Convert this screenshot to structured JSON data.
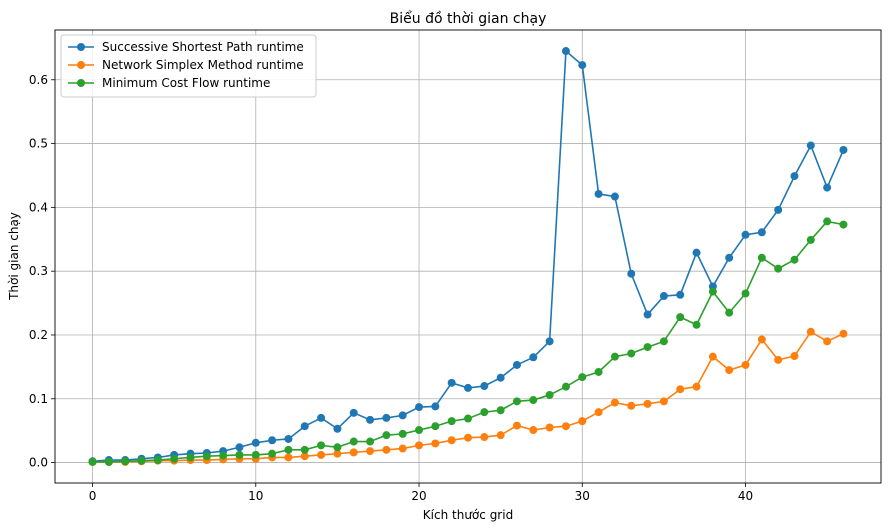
{
  "chart_data": {
    "type": "line",
    "title": "Biểu đồ thời gian chạy",
    "xlabel": "Kích thước grid",
    "ylabel": "Thời gian chạy",
    "xlim": [
      -2.3,
      48.3
    ],
    "ylim": [
      -0.032,
      0.678
    ],
    "xticks": [
      0,
      10,
      20,
      30,
      40
    ],
    "yticks": [
      0.0,
      0.1,
      0.2,
      0.3,
      0.4,
      0.5,
      0.6
    ],
    "ytick_labels": [
      "0.0",
      "0.1",
      "0.2",
      "0.3",
      "0.4",
      "0.5",
      "0.6"
    ],
    "grid": true,
    "legend_position": "top-left",
    "x": [
      0,
      1,
      2,
      3,
      4,
      5,
      6,
      7,
      8,
      9,
      10,
      11,
      12,
      13,
      14,
      15,
      16,
      17,
      18,
      19,
      20,
      21,
      22,
      23,
      24,
      25,
      26,
      27,
      28,
      29,
      30,
      31,
      32,
      33,
      34,
      35,
      36,
      37,
      38,
      39,
      40,
      41,
      42,
      43,
      44,
      45,
      46
    ],
    "series": [
      {
        "name": "Successive Shortest Path runtime",
        "color": "#1f77b4",
        "values": [
          0.002,
          0.004,
          0.004,
          0.006,
          0.008,
          0.012,
          0.014,
          0.015,
          0.018,
          0.024,
          0.031,
          0.035,
          0.037,
          0.057,
          0.07,
          0.053,
          0.078,
          0.067,
          0.07,
          0.074,
          0.087,
          0.088,
          0.125,
          0.117,
          0.12,
          0.133,
          0.153,
          0.165,
          0.19,
          0.645,
          0.623,
          0.421,
          0.417,
          0.296,
          0.232,
          0.261,
          0.263,
          0.329,
          0.276,
          0.321,
          0.357,
          0.361,
          0.396,
          0.449,
          0.497,
          0.431,
          0.49
        ]
      },
      {
        "name": "Network Simplex Method runtime",
        "color": "#ff7f0e",
        "values": [
          0.001,
          0.001,
          0.001,
          0.002,
          0.003,
          0.003,
          0.004,
          0.004,
          0.005,
          0.006,
          0.006,
          0.008,
          0.008,
          0.01,
          0.012,
          0.014,
          0.016,
          0.018,
          0.02,
          0.022,
          0.027,
          0.03,
          0.035,
          0.039,
          0.04,
          0.043,
          0.058,
          0.051,
          0.055,
          0.057,
          0.065,
          0.079,
          0.094,
          0.089,
          0.092,
          0.096,
          0.115,
          0.119,
          0.166,
          0.145,
          0.153,
          0.193,
          0.161,
          0.167,
          0.205,
          0.19,
          0.202
        ]
      },
      {
        "name": "Minimum Cost Flow runtime",
        "color": "#2ca02c",
        "values": [
          0.001,
          0.001,
          0.002,
          0.003,
          0.004,
          0.006,
          0.008,
          0.01,
          0.011,
          0.012,
          0.012,
          0.014,
          0.02,
          0.02,
          0.027,
          0.024,
          0.033,
          0.033,
          0.043,
          0.045,
          0.051,
          0.057,
          0.065,
          0.069,
          0.079,
          0.082,
          0.096,
          0.098,
          0.106,
          0.119,
          0.134,
          0.142,
          0.166,
          0.171,
          0.181,
          0.19,
          0.228,
          0.216,
          0.268,
          0.235,
          0.265,
          0.321,
          0.304,
          0.318,
          0.349,
          0.378,
          0.373
        ]
      }
    ]
  }
}
